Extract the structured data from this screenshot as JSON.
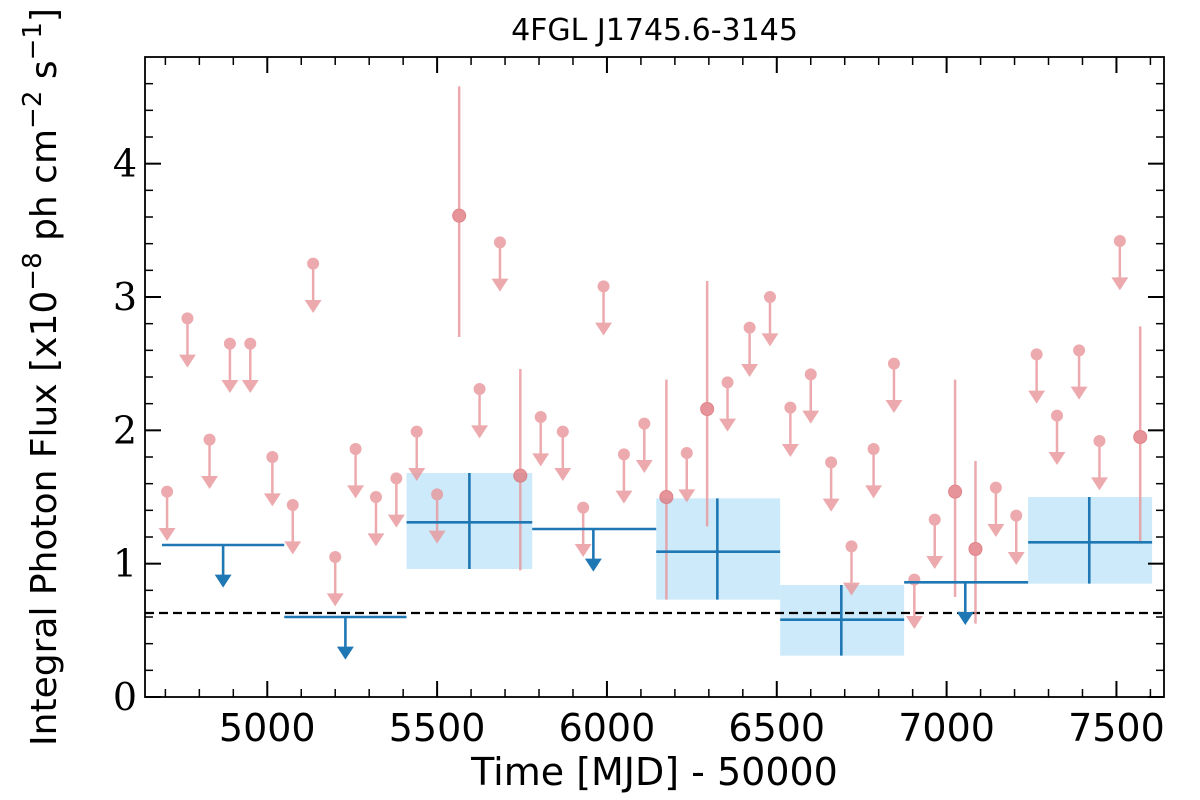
{
  "chart_data": {
    "type": "scatter",
    "title": "4FGL J1745.6-3145",
    "xlabel": "Time [MJD] - 50000",
    "ylabel_main": "Integral Photon Flux [x10",
    "ylabel_exp1": "−8",
    "ylabel_mid": " ph cm",
    "ylabel_exp2": "−2",
    "ylabel_s": " s",
    "ylabel_exp3": "−1",
    "ylabel_end": "]",
    "xlim": [
      4640,
      7640
    ],
    "ylim": [
      0,
      4.8
    ],
    "x_ticks": [
      5000,
      5500,
      6000,
      6500,
      7000,
      7500
    ],
    "x_tick_labels": [
      "5000",
      "5500",
      "6000",
      "6500",
      "7000",
      "7500"
    ],
    "y_ticks": [
      0,
      1,
      2,
      3,
      4
    ],
    "y_tick_labels": [
      "0",
      "1",
      "2",
      "3",
      "4"
    ],
    "dashed_reference_level": 0.63,
    "colors": {
      "short_bins": "#e8969a",
      "long_bins": "#1f77b4",
      "long_band": "#cdeafa",
      "reference_line": "#000000"
    },
    "short_bin_upper_limits": [
      {
        "x": 4705,
        "y": 1.54
      },
      {
        "x": 4765,
        "y": 2.84
      },
      {
        "x": 4830,
        "y": 1.93
      },
      {
        "x": 4890,
        "y": 2.65
      },
      {
        "x": 4950,
        "y": 2.65
      },
      {
        "x": 5015,
        "y": 1.8
      },
      {
        "x": 5075,
        "y": 1.44
      },
      {
        "x": 5135,
        "y": 3.25
      },
      {
        "x": 5200,
        "y": 1.05
      },
      {
        "x": 5260,
        "y": 1.86
      },
      {
        "x": 5320,
        "y": 1.5
      },
      {
        "x": 5380,
        "y": 1.64
      },
      {
        "x": 5440,
        "y": 1.99
      },
      {
        "x": 5500,
        "y": 1.52
      },
      {
        "x": 5625,
        "y": 2.31
      },
      {
        "x": 5685,
        "y": 3.41
      },
      {
        "x": 5805,
        "y": 2.1
      },
      {
        "x": 5870,
        "y": 1.99
      },
      {
        "x": 5930,
        "y": 1.42
      },
      {
        "x": 5990,
        "y": 3.08
      },
      {
        "x": 6050,
        "y": 1.82
      },
      {
        "x": 6110,
        "y": 2.05
      },
      {
        "x": 6235,
        "y": 1.83
      },
      {
        "x": 6355,
        "y": 2.36
      },
      {
        "x": 6420,
        "y": 2.77
      },
      {
        "x": 6480,
        "y": 3.0
      },
      {
        "x": 6540,
        "y": 2.17
      },
      {
        "x": 6600,
        "y": 2.42
      },
      {
        "x": 6660,
        "y": 1.76
      },
      {
        "x": 6720,
        "y": 1.13
      },
      {
        "x": 6785,
        "y": 1.86
      },
      {
        "x": 6845,
        "y": 2.5
      },
      {
        "x": 6905,
        "y": 0.88
      },
      {
        "x": 6965,
        "y": 1.33
      },
      {
        "x": 7145,
        "y": 1.57
      },
      {
        "x": 7205,
        "y": 1.36
      },
      {
        "x": 7265,
        "y": 2.57
      },
      {
        "x": 7325,
        "y": 2.11
      },
      {
        "x": 7390,
        "y": 2.6
      },
      {
        "x": 7450,
        "y": 1.92
      },
      {
        "x": 7510,
        "y": 3.42
      }
    ],
    "short_bin_detections": [
      {
        "x": 5565,
        "y": 3.61,
        "ylo": 2.7,
        "yhi": 4.58
      },
      {
        "x": 5745,
        "y": 1.66,
        "ylo": 0.95,
        "yhi": 2.46
      },
      {
        "x": 6175,
        "y": 1.5,
        "ylo": 0.73,
        "yhi": 2.38
      },
      {
        "x": 6295,
        "y": 2.16,
        "ylo": 1.28,
        "yhi": 3.12
      },
      {
        "x": 7025,
        "y": 1.54,
        "ylo": 0.75,
        "yhi": 2.38
      },
      {
        "x": 7085,
        "y": 1.11,
        "ylo": 0.55,
        "yhi": 1.77
      },
      {
        "x": 7570,
        "y": 1.95,
        "ylo": 1.17,
        "yhi": 2.78
      }
    ],
    "long_bin_upper_limits": [
      {
        "x0": 4690,
        "x1": 5050,
        "y": 1.14,
        "x_arrow": 4870
      },
      {
        "x0": 5050,
        "x1": 5410,
        "y": 0.6,
        "x_arrow": 5230
      },
      {
        "x0": 5780,
        "x1": 6145,
        "y": 1.26,
        "x_arrow": 5960
      },
      {
        "x0": 6875,
        "x1": 7240,
        "y": 0.86,
        "x_arrow": 7055
      }
    ],
    "long_bin_detections": [
      {
        "x0": 5410,
        "x1": 5780,
        "x": 5595,
        "y": 1.31,
        "ylo": 0.96,
        "yhi": 1.68
      },
      {
        "x0": 6145,
        "x1": 6510,
        "x": 6325,
        "y": 1.09,
        "ylo": 0.73,
        "yhi": 1.49
      },
      {
        "x0": 6510,
        "x1": 6875,
        "x": 6690,
        "y": 0.58,
        "ylo": 0.31,
        "yhi": 0.84
      },
      {
        "x0": 7240,
        "x1": 7605,
        "x": 7420,
        "y": 1.16,
        "ylo": 0.85,
        "yhi": 1.5
      }
    ]
  }
}
